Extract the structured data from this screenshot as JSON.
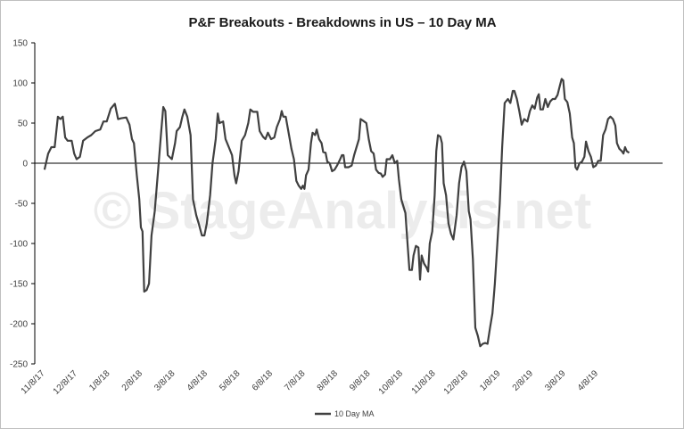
{
  "chart_data": {
    "type": "line",
    "title": "P&F Breakouts - Breakdowns in US – 10 Day MA",
    "watermark": "© StageAnalysis.net",
    "xlabel": "",
    "ylabel": "",
    "ylim": [
      -250,
      150
    ],
    "yticks": [
      "150",
      "100",
      "50",
      "0",
      "-50",
      "-100",
      "-150",
      "-200",
      "-250"
    ],
    "x_tick_labels": [
      "11/8/17",
      "12/8/17",
      "1/8/18",
      "2/8/18",
      "3/8/18",
      "4/8/18",
      "5/8/18",
      "6/8/18",
      "7/8/18",
      "8/8/18",
      "9/8/18",
      "10/8/18",
      "11/8/18",
      "12/8/18",
      "1/8/19",
      "2/8/19",
      "3/8/19",
      "4/8/19"
    ],
    "grid": false,
    "legend_position": "bottom-center",
    "colors": {
      "line": "#404040",
      "axis": "#000000"
    },
    "series": [
      {
        "name": "10 Day MA",
        "points": [
          [
            0.3,
            -8
          ],
          [
            1.2,
            12
          ],
          [
            2.0,
            20
          ],
          [
            2.8,
            20
          ],
          [
            3.6,
            58
          ],
          [
            4.2,
            55
          ],
          [
            4.8,
            58
          ],
          [
            5.4,
            32
          ],
          [
            6.0,
            28
          ],
          [
            7.0,
            28
          ],
          [
            7.6,
            12
          ],
          [
            8.2,
            5
          ],
          [
            9.0,
            8
          ],
          [
            9.8,
            28
          ],
          [
            10.8,
            32
          ],
          [
            11.8,
            35
          ],
          [
            12.8,
            40
          ],
          [
            14.0,
            42
          ],
          [
            14.8,
            52
          ],
          [
            15.6,
            52
          ],
          [
            16.6,
            68
          ],
          [
            17.6,
            74
          ],
          [
            18.4,
            55
          ],
          [
            19.2,
            56
          ],
          [
            20.4,
            57
          ],
          [
            21.2,
            48
          ],
          [
            21.8,
            30
          ],
          [
            22.3,
            25
          ],
          [
            23.0,
            -15
          ],
          [
            23.6,
            -45
          ],
          [
            24.0,
            -80
          ],
          [
            24.4,
            -85
          ],
          [
            24.8,
            -160
          ],
          [
            25.4,
            -158
          ],
          [
            26.0,
            -150
          ],
          [
            26.6,
            -90
          ],
          [
            27.4,
            -60
          ],
          [
            28.2,
            -10
          ],
          [
            29.0,
            40
          ],
          [
            29.5,
            70
          ],
          [
            30.0,
            65
          ],
          [
            30.6,
            10
          ],
          [
            31.6,
            5
          ],
          [
            32.4,
            25
          ],
          [
            32.8,
            40
          ],
          [
            33.6,
            45
          ],
          [
            34.2,
            58
          ],
          [
            34.7,
            67
          ],
          [
            35.4,
            58
          ],
          [
            36.2,
            35
          ],
          [
            36.8,
            -45
          ],
          [
            37.6,
            -65
          ],
          [
            38.2,
            -75
          ],
          [
            39.0,
            -90
          ],
          [
            39.6,
            -90
          ],
          [
            40.2,
            -75
          ],
          [
            41.0,
            -40
          ],
          [
            41.6,
            0
          ],
          [
            42.4,
            30
          ],
          [
            42.9,
            62
          ],
          [
            43.3,
            50
          ],
          [
            44.2,
            52
          ],
          [
            44.8,
            30
          ],
          [
            45.6,
            20
          ],
          [
            46.4,
            10
          ],
          [
            47.0,
            -15
          ],
          [
            47.4,
            -25
          ],
          [
            48.0,
            -10
          ],
          [
            48.8,
            28
          ],
          [
            49.6,
            35
          ],
          [
            50.4,
            50
          ],
          [
            50.9,
            67
          ],
          [
            51.6,
            64
          ],
          [
            52.6,
            64
          ],
          [
            53.2,
            40
          ],
          [
            54.0,
            33
          ],
          [
            54.6,
            30
          ],
          [
            55.2,
            38
          ],
          [
            56.0,
            30
          ],
          [
            56.8,
            32
          ],
          [
            57.4,
            45
          ],
          [
            58.2,
            55
          ],
          [
            58.6,
            65
          ],
          [
            59.0,
            58
          ],
          [
            59.6,
            58
          ],
          [
            60.4,
            35
          ],
          [
            61.0,
            18
          ],
          [
            61.6,
            5
          ],
          [
            62.2,
            -22
          ],
          [
            62.8,
            -28
          ],
          [
            63.4,
            -32
          ],
          [
            63.8,
            -28
          ],
          [
            64.2,
            -32
          ],
          [
            64.6,
            -15
          ],
          [
            65.2,
            -8
          ],
          [
            65.8,
            25
          ],
          [
            66.2,
            38
          ],
          [
            66.8,
            35
          ],
          [
            67.2,
            42
          ],
          [
            67.8,
            30
          ],
          [
            68.4,
            25
          ],
          [
            68.8,
            14
          ],
          [
            69.4,
            13
          ],
          [
            69.8,
            2
          ],
          [
            70.4,
            0
          ],
          [
            71.0,
            -10
          ],
          [
            71.6,
            -8
          ],
          [
            72.2,
            -3
          ],
          [
            72.8,
            3
          ],
          [
            73.4,
            10
          ],
          [
            73.8,
            10
          ],
          [
            74.2,
            -5
          ],
          [
            75.0,
            -5
          ],
          [
            75.8,
            -3
          ],
          [
            76.4,
            10
          ],
          [
            77.0,
            20
          ],
          [
            77.6,
            30
          ],
          [
            78.0,
            55
          ],
          [
            78.6,
            53
          ],
          [
            79.4,
            50
          ],
          [
            80.0,
            30
          ],
          [
            80.6,
            15
          ],
          [
            81.2,
            12
          ],
          [
            81.8,
            -8
          ],
          [
            82.4,
            -12
          ],
          [
            83.0,
            -13
          ],
          [
            83.4,
            -17
          ],
          [
            84.0,
            -14
          ],
          [
            84.4,
            5
          ],
          [
            85.2,
            5
          ],
          [
            85.8,
            10
          ],
          [
            86.4,
            0
          ],
          [
            87.0,
            3
          ],
          [
            87.4,
            -20
          ],
          [
            88.0,
            -45
          ],
          [
            88.6,
            -55
          ],
          [
            89.0,
            -62
          ],
          [
            89.6,
            -105
          ],
          [
            90.0,
            -133
          ],
          [
            90.6,
            -133
          ],
          [
            91.0,
            -115
          ],
          [
            91.6,
            -103
          ],
          [
            92.2,
            -105
          ],
          [
            92.6,
            -145
          ],
          [
            93.0,
            -115
          ],
          [
            93.6,
            -125
          ],
          [
            94.2,
            -130
          ],
          [
            94.6,
            -135
          ],
          [
            95.0,
            -100
          ],
          [
            95.6,
            -85
          ],
          [
            96.2,
            -40
          ],
          [
            96.6,
            15
          ],
          [
            97.0,
            35
          ],
          [
            97.6,
            33
          ],
          [
            98.0,
            25
          ],
          [
            98.4,
            -25
          ],
          [
            99.0,
            -40
          ],
          [
            99.6,
            -75
          ],
          [
            100.2,
            -88
          ],
          [
            100.8,
            -95
          ],
          [
            101.6,
            -65
          ],
          [
            102.2,
            -25
          ],
          [
            102.8,
            -5
          ],
          [
            103.4,
            2
          ],
          [
            104.0,
            -10
          ],
          [
            104.6,
            -60
          ],
          [
            105.0,
            -70
          ],
          [
            105.6,
            -120
          ],
          [
            106.2,
            -205
          ],
          [
            106.8,
            -215
          ],
          [
            107.4,
            -228
          ],
          [
            108.0,
            -225
          ],
          [
            108.6,
            -224
          ],
          [
            109.2,
            -225
          ],
          [
            109.8,
            -205
          ],
          [
            110.4,
            -187
          ],
          [
            111.0,
            -150
          ],
          [
            111.6,
            -100
          ],
          [
            112.2,
            -50
          ],
          [
            112.8,
            20
          ],
          [
            113.4,
            75
          ],
          [
            114.2,
            80
          ],
          [
            114.8,
            75
          ],
          [
            115.4,
            90
          ],
          [
            115.8,
            90
          ],
          [
            116.4,
            80
          ],
          [
            117.0,
            65
          ],
          [
            117.6,
            48
          ],
          [
            118.2,
            55
          ],
          [
            119.0,
            52
          ],
          [
            119.6,
            65
          ],
          [
            120.2,
            72
          ],
          [
            120.8,
            68
          ],
          [
            121.4,
            82
          ],
          [
            121.8,
            86
          ],
          [
            122.2,
            67
          ],
          [
            122.8,
            67
          ],
          [
            123.4,
            80
          ],
          [
            124.0,
            70
          ],
          [
            124.6,
            77
          ],
          [
            125.2,
            80
          ],
          [
            125.8,
            80
          ],
          [
            126.4,
            85
          ],
          [
            127.0,
            97
          ],
          [
            127.4,
            105
          ],
          [
            127.8,
            103
          ],
          [
            128.2,
            80
          ],
          [
            128.8,
            76
          ],
          [
            129.4,
            62
          ],
          [
            130.0,
            32
          ],
          [
            130.4,
            25
          ],
          [
            130.8,
            -5
          ],
          [
            131.2,
            -8
          ],
          [
            131.8,
            0
          ],
          [
            132.4,
            2
          ],
          [
            133.0,
            8
          ],
          [
            133.4,
            27
          ],
          [
            134.0,
            15
          ],
          [
            134.6,
            8
          ],
          [
            135.2,
            -5
          ],
          [
            135.8,
            -3
          ],
          [
            136.4,
            3
          ],
          [
            137.0,
            3
          ],
          [
            137.6,
            35
          ],
          [
            138.2,
            42
          ],
          [
            138.8,
            55
          ],
          [
            139.4,
            58
          ],
          [
            140.0,
            55
          ],
          [
            140.6,
            47
          ],
          [
            141.0,
            25
          ],
          [
            141.6,
            18
          ],
          [
            142.2,
            15
          ],
          [
            142.6,
            12
          ],
          [
            143.0,
            20
          ],
          [
            143.4,
            15
          ],
          [
            144.0,
            13
          ]
        ]
      }
    ]
  }
}
